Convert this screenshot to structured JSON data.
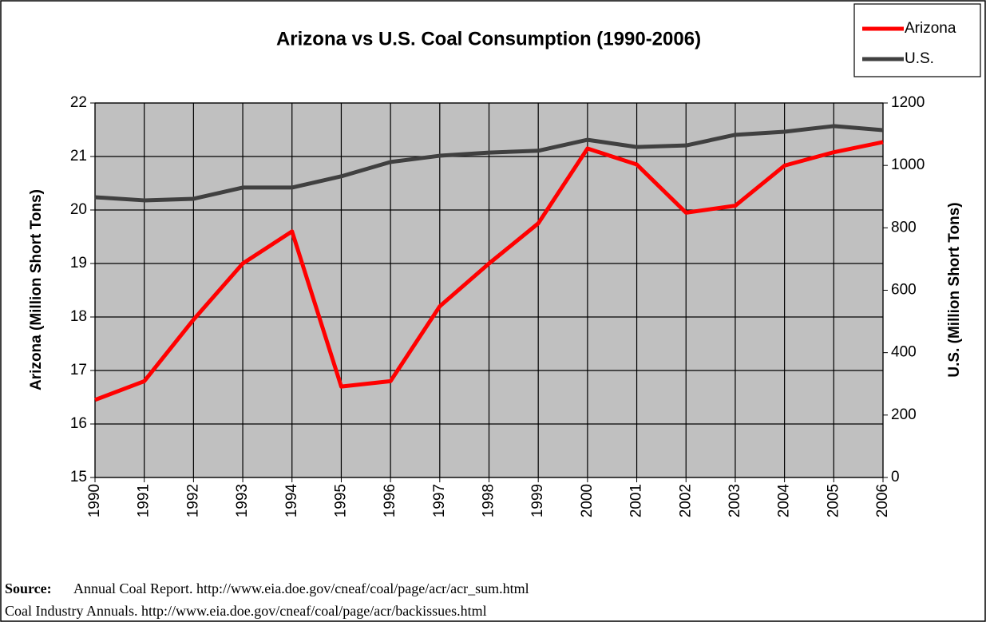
{
  "chart_data": {
    "type": "line",
    "title": "Arizona vs U.S. Coal Consumption (1990-2006)",
    "categories": [
      "1990",
      "1991",
      "1992",
      "1993",
      "1994",
      "1995",
      "1996",
      "1997",
      "1998",
      "1999",
      "2000",
      "2001",
      "2002",
      "2003",
      "2004",
      "2005",
      "2006"
    ],
    "series": [
      {
        "name": "Arizona",
        "color": "#ff0000",
        "axis": "y",
        "values": [
          16.45,
          16.8,
          17.95,
          19.0,
          19.6,
          16.7,
          16.8,
          18.2,
          19.0,
          19.75,
          21.15,
          20.85,
          19.95,
          20.08,
          20.83,
          21.08,
          21.27
        ]
      },
      {
        "name": "U.S.",
        "color": "#404040",
        "axis": "y2",
        "values": [
          898,
          888,
          893,
          929,
          929,
          965,
          1011,
          1031,
          1041,
          1047,
          1082,
          1059,
          1064,
          1098,
          1108,
          1126,
          1113
        ]
      }
    ],
    "ylabel": "Arizona (Million Short Tons)",
    "y2label": "U.S. (Million Short Tons)",
    "ylim": [
      15,
      22
    ],
    "yticks": [
      15,
      16,
      17,
      18,
      19,
      20,
      21,
      22
    ],
    "y2lim": [
      0,
      1200
    ],
    "y2ticks": [
      0,
      200,
      400,
      600,
      800,
      1000,
      1200
    ],
    "grid": true,
    "legend": "top-right",
    "source_label": "Source:",
    "source_lines": [
      "Annual Coal Report.  http://www.eia.doe.gov/cneaf/coal/page/acr/acr_sum.html",
      "Coal Industry Annuals.  http://www.eia.doe.gov/cneaf/coal/page/acr/backissues.html"
    ]
  }
}
